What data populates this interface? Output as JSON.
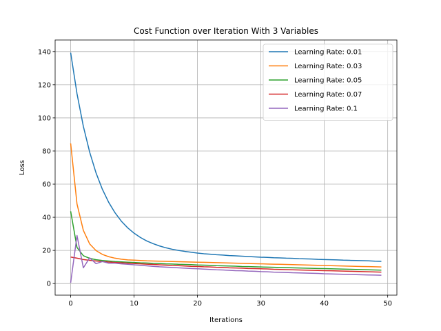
{
  "chart_data": {
    "type": "line",
    "title": "Cost Function over Iteration With 3 Variables",
    "xlabel": "Iterations",
    "ylabel": "Loss",
    "xlim": [
      -2.45,
      51.45
    ],
    "ylim": [
      -7,
      147
    ],
    "xticks": [
      0,
      10,
      20,
      30,
      40,
      50
    ],
    "yticks": [
      0,
      20,
      40,
      60,
      80,
      100,
      120,
      140
    ],
    "grid": true,
    "legend_position": "top-right",
    "x": [
      0,
      1,
      2,
      3,
      4,
      5,
      6,
      7,
      8,
      9,
      10,
      11,
      12,
      13,
      14,
      15,
      16,
      17,
      18,
      19,
      20,
      21,
      22,
      23,
      24,
      25,
      26,
      27,
      28,
      29,
      30,
      31,
      32,
      33,
      34,
      35,
      36,
      37,
      38,
      39,
      40,
      41,
      42,
      43,
      44,
      45,
      46,
      47,
      48,
      49
    ],
    "series": [
      {
        "name": "Learning Rate: 0.01",
        "color": "#1f77b4",
        "values": [
          139.3,
          114.6,
          94.9,
          79.3,
          66.8,
          56.9,
          49.0,
          42.7,
          37.6,
          33.6,
          30.4,
          27.8,
          25.7,
          24.1,
          22.7,
          21.6,
          20.7,
          20.0,
          19.4,
          18.9,
          18.4,
          18.0,
          17.7,
          17.4,
          17.2,
          16.9,
          16.7,
          16.5,
          16.3,
          16.1,
          15.9,
          15.8,
          15.6,
          15.5,
          15.3,
          15.2,
          15.0,
          14.9,
          14.8,
          14.6,
          14.5,
          14.4,
          14.3,
          14.1,
          14.0,
          13.9,
          13.8,
          13.7,
          13.5,
          13.4
        ]
      },
      {
        "name": "Learning Rate: 0.03",
        "color": "#ff7f0e",
        "values": [
          84.6,
          48.0,
          32.1,
          23.9,
          19.9,
          17.6,
          16.2,
          15.3,
          14.7,
          14.3,
          14.1,
          13.9,
          13.7,
          13.6,
          13.5,
          13.4,
          13.3,
          13.2,
          13.1,
          13.0,
          12.9,
          12.8,
          12.7,
          12.6,
          12.5,
          12.4,
          12.3,
          12.2,
          12.1,
          12.0,
          11.9,
          11.8,
          11.7,
          11.6,
          11.5,
          11.4,
          11.3,
          11.2,
          11.1,
          11.0,
          10.9,
          10.8,
          10.7,
          10.6,
          10.5,
          10.4,
          10.3,
          10.2,
          10.1,
          10.0
        ]
      },
      {
        "name": "Learning Rate: 0.05",
        "color": "#2ca02c",
        "values": [
          43.6,
          21.8,
          16.8,
          15.2,
          14.4,
          13.9,
          13.6,
          13.3,
          13.1,
          12.9,
          12.7,
          12.5,
          12.4,
          12.2,
          12.1,
          11.9,
          11.8,
          11.6,
          11.5,
          11.4,
          11.2,
          11.1,
          11.0,
          10.8,
          10.7,
          10.6,
          10.5,
          10.3,
          10.2,
          10.1,
          10.0,
          9.9,
          9.8,
          9.7,
          9.6,
          9.5,
          9.4,
          9.3,
          9.2,
          9.1,
          9.0,
          8.9,
          8.8,
          8.7,
          8.6,
          8.5,
          8.4,
          8.3,
          8.2,
          8.1
        ]
      },
      {
        "name": "Learning Rate: 0.07",
        "color": "#d62728",
        "values": [
          16.0,
          15.3,
          14.5,
          14.0,
          13.6,
          13.3,
          13.0,
          12.7,
          12.5,
          12.3,
          12.1,
          11.9,
          11.7,
          11.5,
          11.3,
          11.1,
          10.9,
          10.8,
          10.6,
          10.4,
          10.3,
          10.1,
          10.0,
          9.8,
          9.7,
          9.5,
          9.4,
          9.3,
          9.1,
          9.0,
          8.9,
          8.8,
          8.6,
          8.5,
          8.4,
          8.3,
          8.2,
          8.1,
          8.0,
          7.9,
          7.8,
          7.7,
          7.6,
          7.5,
          7.4,
          7.3,
          7.2,
          7.1,
          7.0,
          6.9
        ]
      },
      {
        "name": "Learning Rate: 0.1",
        "color": "#9467bd",
        "values": [
          0.5,
          29.0,
          9.5,
          15.5,
          12.0,
          13.3,
          12.3,
          12.3,
          11.9,
          11.6,
          11.3,
          11.0,
          10.7,
          10.4,
          10.1,
          9.9,
          9.7,
          9.5,
          9.3,
          9.1,
          8.9,
          8.7,
          8.5,
          8.3,
          8.2,
          8.0,
          7.8,
          7.7,
          7.5,
          7.4,
          7.2,
          7.1,
          6.9,
          6.8,
          6.7,
          6.5,
          6.4,
          6.3,
          6.2,
          6.1,
          5.9,
          5.8,
          5.7,
          5.6,
          5.5,
          5.4,
          5.3,
          5.2,
          5.1,
          5.0
        ]
      }
    ]
  }
}
